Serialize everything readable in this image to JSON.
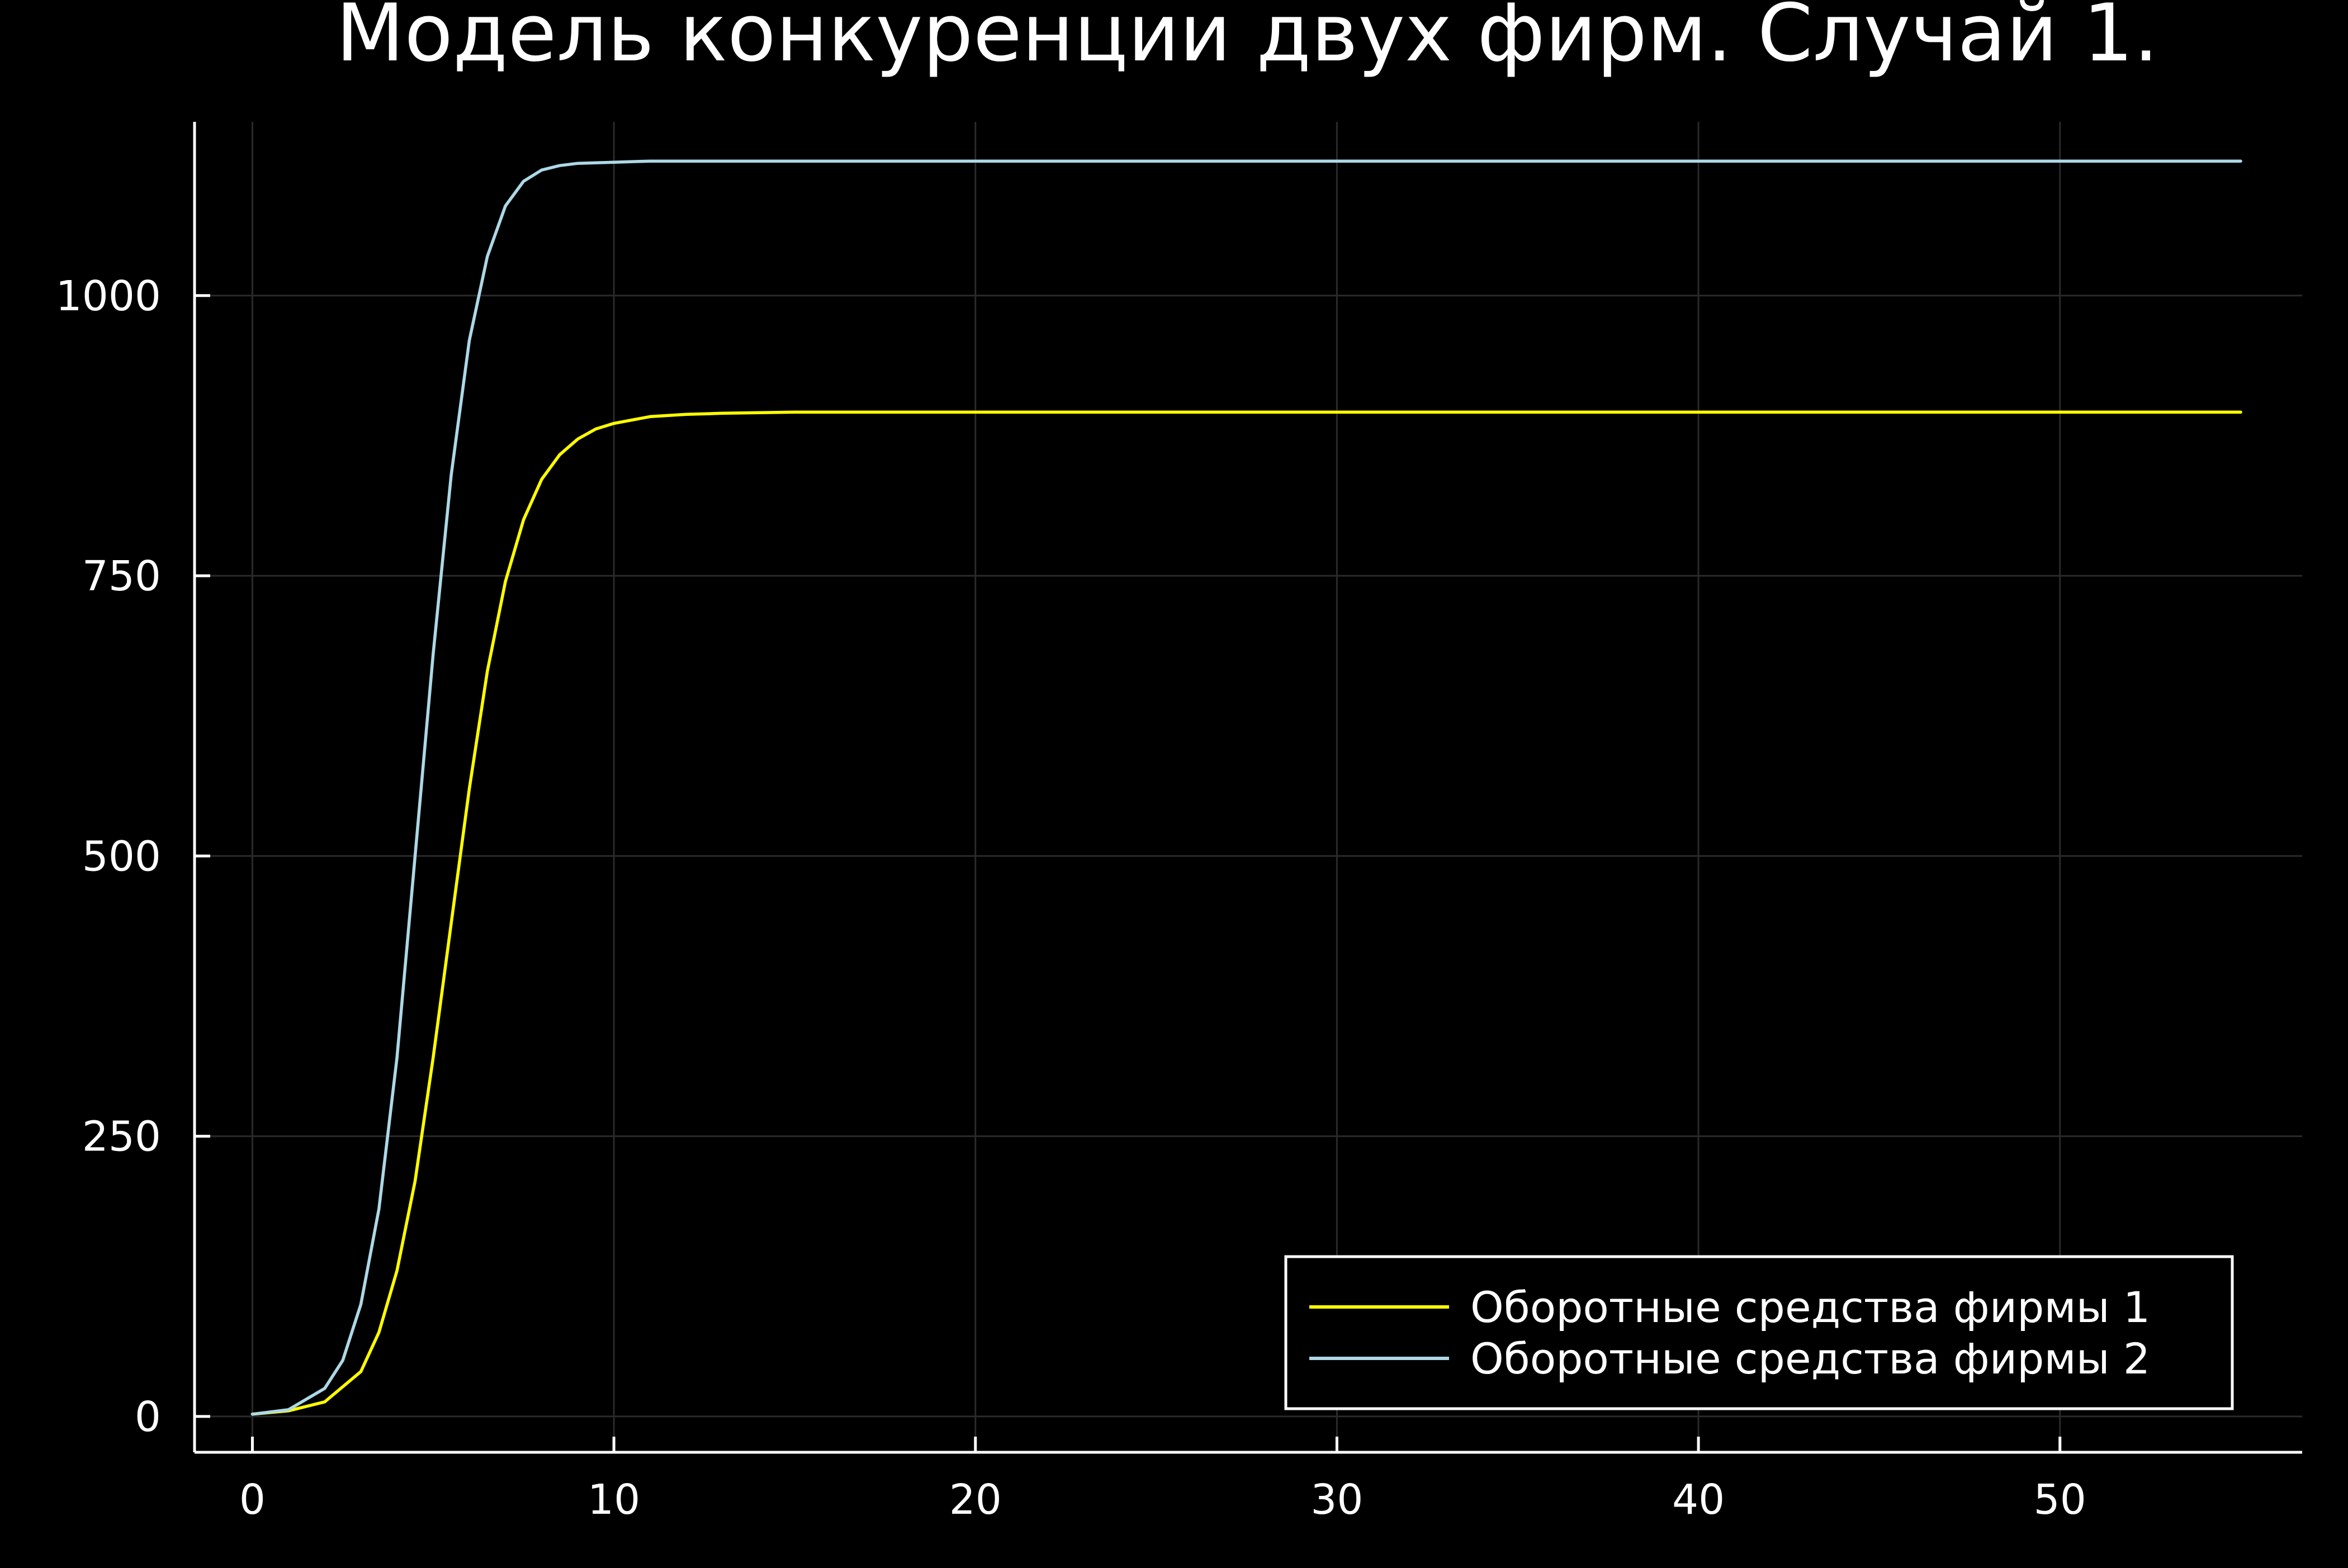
{
  "chart_data": {
    "type": "line",
    "title": "Модель конкуренции двух фирм. Случай 1.",
    "xlabel": "",
    "ylabel": "",
    "xlim": [
      -1.6,
      56.7
    ],
    "ylim": [
      -32,
      1155
    ],
    "xticks": [
      0,
      10,
      20,
      30,
      40,
      50
    ],
    "yticks": [
      0,
      250,
      500,
      750,
      1000
    ],
    "grid": true,
    "legend_position": "bottom-right",
    "background": "#000000",
    "series": [
      {
        "name": "Оборотные средства фирмы 1",
        "color": "#ffff00",
        "x": [
          0,
          1,
          2,
          3,
          3.5,
          4,
          4.5,
          5,
          5.5,
          6,
          6.5,
          7,
          7.5,
          8,
          8.5,
          9,
          9.5,
          10,
          11,
          12,
          13,
          15,
          20,
          30,
          40,
          50,
          55
        ],
        "y": [
          2,
          5,
          13,
          40,
          75,
          130,
          210,
          320,
          440,
          560,
          665,
          745,
          800,
          836,
          858,
          872,
          881,
          886,
          892,
          894,
          895,
          896,
          896,
          896,
          896,
          896,
          896
        ]
      },
      {
        "name": "Оборотные средства фирмы 2",
        "color": "#add8e6",
        "x": [
          0,
          1,
          2,
          2.5,
          3,
          3.5,
          4,
          4.5,
          5,
          5.5,
          6,
          6.5,
          7,
          7.5,
          8,
          8.5,
          9,
          10,
          11,
          12,
          15,
          20,
          30,
          40,
          50,
          55
        ],
        "y": [
          2,
          6,
          25,
          50,
          100,
          185,
          320,
          500,
          680,
          840,
          960,
          1035,
          1080,
          1102,
          1112,
          1116,
          1118,
          1119,
          1120,
          1120,
          1120,
          1120,
          1120,
          1120,
          1120,
          1120
        ]
      }
    ]
  }
}
